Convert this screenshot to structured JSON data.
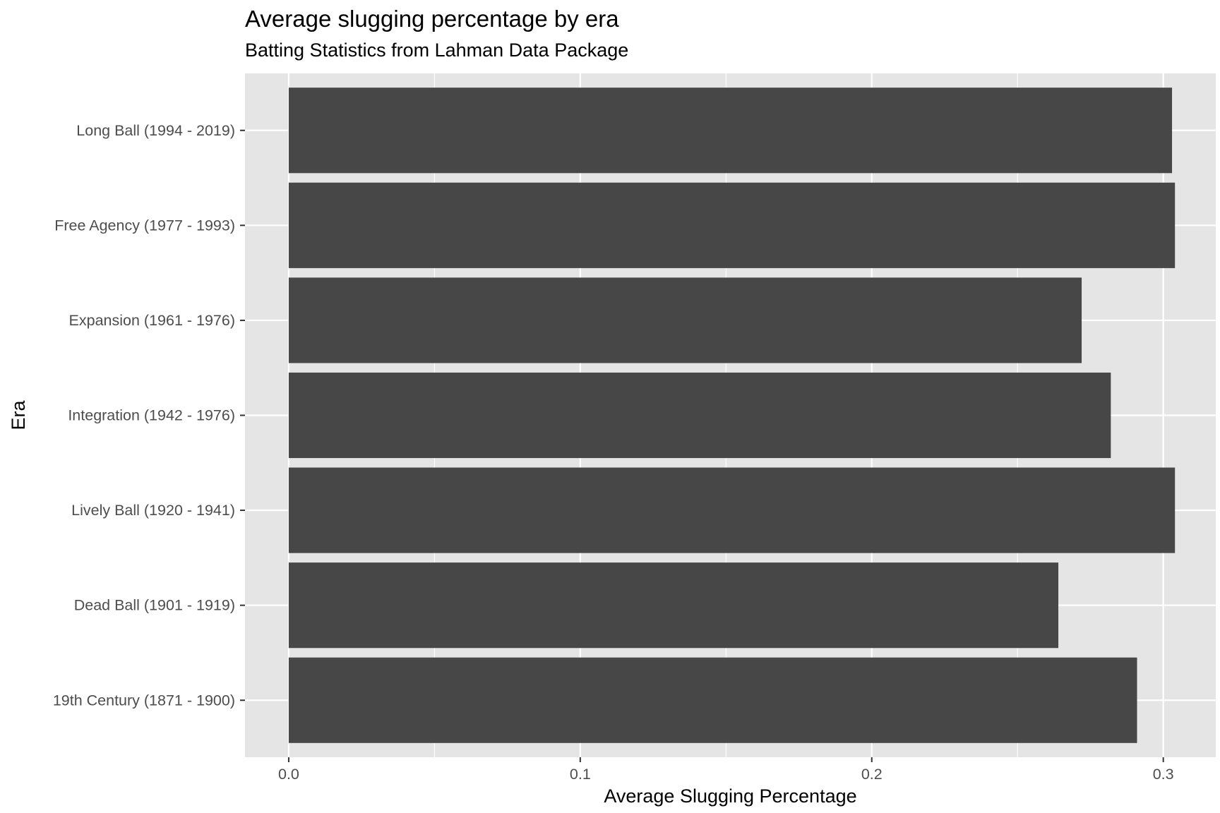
{
  "chart_data": {
    "type": "bar",
    "orientation": "horizontal",
    "title": "Average slugging percentage by era",
    "subtitle": "Batting Statistics from Lahman Data Package",
    "xlabel": "Average Slugging Percentage",
    "ylabel": "Era",
    "xlim": [
      -0.015,
      0.318
    ],
    "x_ticks": [
      0.0,
      0.1,
      0.2,
      0.3
    ],
    "x_tick_labels": [
      "0.0",
      "0.1",
      "0.2",
      "0.3"
    ],
    "categories": [
      "19th Century (1871 - 1900)",
      "Dead Ball (1901 - 1919)",
      "Lively Ball (1920 - 1941)",
      "Integration (1942 - 1976)",
      "Expansion (1961 - 1976)",
      "Free Agency (1977 - 1993)",
      "Long Ball (1994 - 2019)"
    ],
    "values": [
      0.291,
      0.264,
      0.304,
      0.282,
      0.272,
      0.304,
      0.303
    ],
    "grid": true,
    "legend": "none",
    "colors": {
      "panel": "#e5e5e5",
      "grid": "#ffffff",
      "bar": "#474747",
      "tick_text": "#4d4d4d",
      "axis_text": "#000000"
    }
  }
}
